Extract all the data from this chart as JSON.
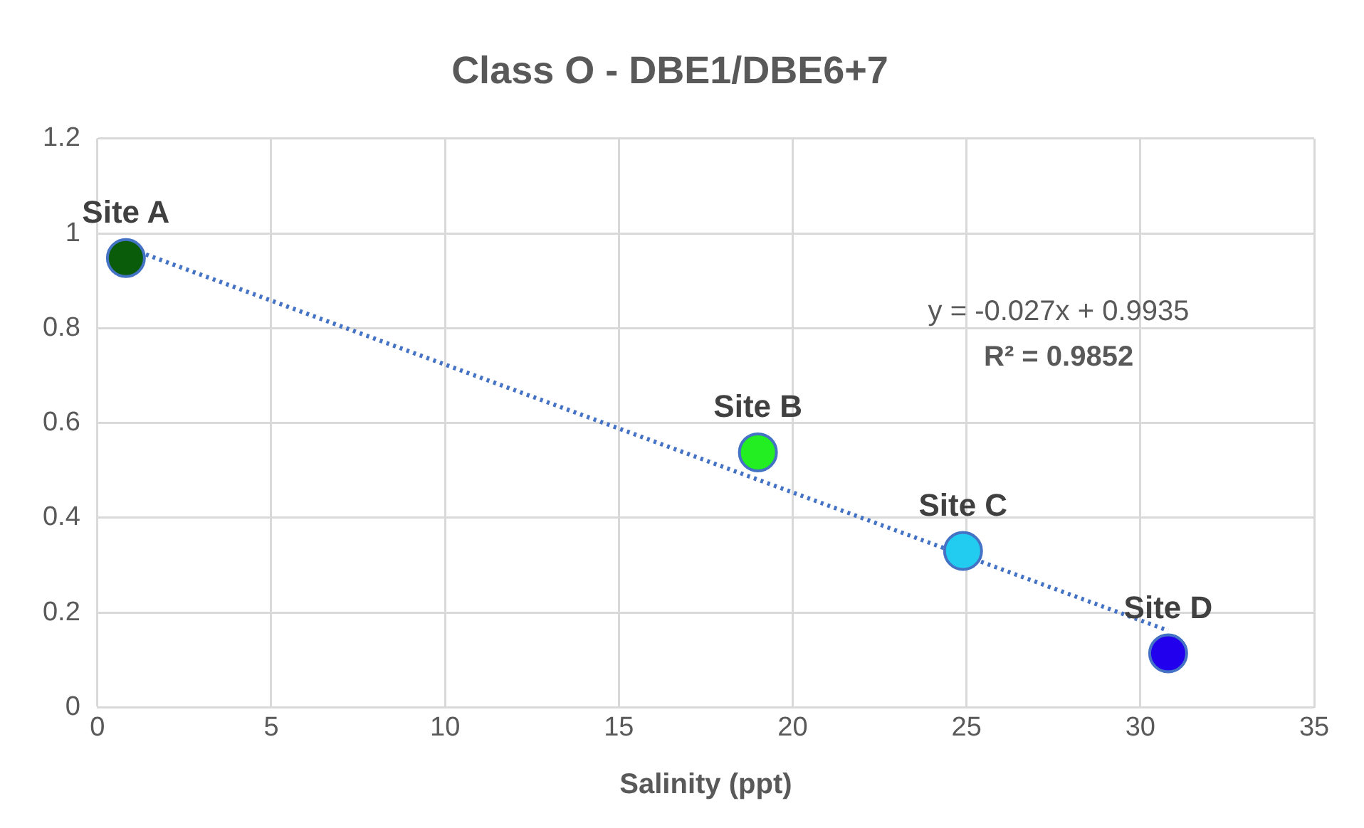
{
  "chart_data": {
    "type": "scatter",
    "title": "Class O - DBE1/DBE6+7",
    "xlabel": "Salinity (ppt)",
    "xlim": [
      0,
      35
    ],
    "xticks": [
      0,
      5,
      10,
      15,
      20,
      25,
      30,
      35
    ],
    "ylim": [
      0,
      1.2
    ],
    "yticks": [
      0,
      0.2,
      0.4,
      0.6,
      0.8,
      1,
      1.2
    ],
    "grid": true,
    "legend": false,
    "marker": "circle",
    "series": [
      {
        "x": [
          0.82,
          19.0,
          24.9,
          30.8
        ],
        "values": [
          0.948,
          0.538,
          0.33,
          0.114
        ],
        "colors": [
          "#0a5c0a",
          "#22ee22",
          "#22ccf0",
          "#2200ee"
        ],
        "value_labels": [
          "Site A",
          "Site B",
          "Site C",
          "Site D"
        ]
      },
      {
        "type": "line",
        "x": [
          0.82,
          30.8
        ],
        "values": [
          0.971,
          0.162
        ],
        "color": "#4472c4",
        "line_style": "dotted",
        "marker": "none"
      }
    ],
    "annotations": [
      "y = -0.027x + 0.9935",
      "R² = 0.9852"
    ]
  }
}
